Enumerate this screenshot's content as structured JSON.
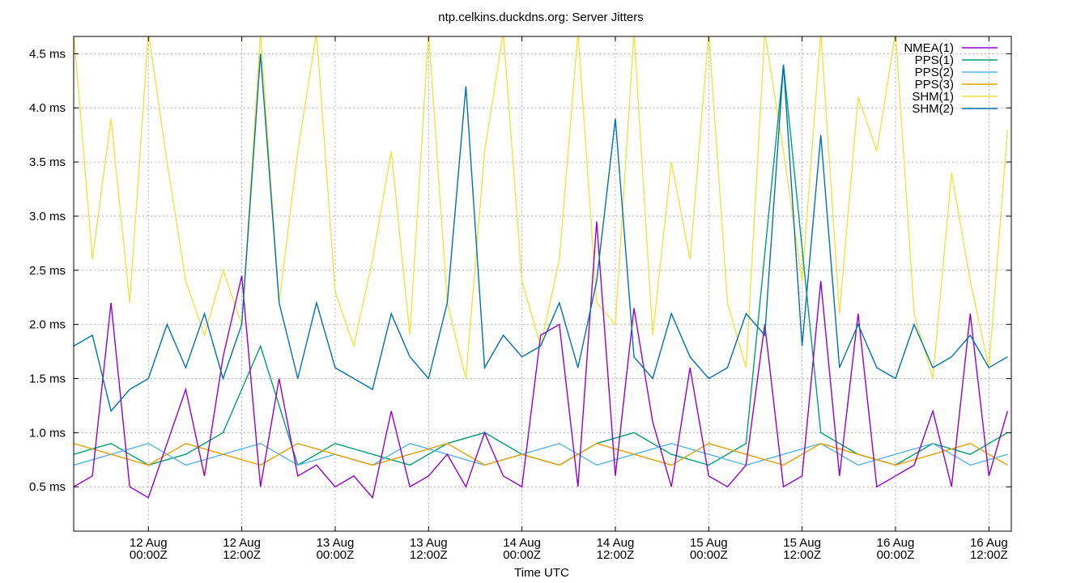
{
  "chart_data": {
    "type": "line",
    "title": "ntp.celkins.duckdns.org: Server Jitters",
    "xlabel": "Time UTC",
    "ylabel": "",
    "x_unit": "day",
    "xlim": [
      -0.4,
      4.62
    ],
    "ylim": [
      0.09,
      4.66
    ],
    "grid": true,
    "legend_position": "top-right",
    "x_ticks": [
      {
        "x": 0.0,
        "line1": "12 Aug",
        "line2": "00:00Z"
      },
      {
        "x": 0.5,
        "line1": "12 Aug",
        "line2": "12:00Z"
      },
      {
        "x": 1.0,
        "line1": "13 Aug",
        "line2": "00:00Z"
      },
      {
        "x": 1.5,
        "line1": "13 Aug",
        "line2": "12:00Z"
      },
      {
        "x": 2.0,
        "line1": "14 Aug",
        "line2": "00:00Z"
      },
      {
        "x": 2.5,
        "line1": "14 Aug",
        "line2": "12:00Z"
      },
      {
        "x": 3.0,
        "line1": "15 Aug",
        "line2": "00:00Z"
      },
      {
        "x": 3.5,
        "line1": "15 Aug",
        "line2": "12:00Z"
      },
      {
        "x": 4.0,
        "line1": "16 Aug",
        "line2": "00:00Z"
      },
      {
        "x": 4.5,
        "line1": "16 Aug",
        "line2": "12:00Z"
      }
    ],
    "y_ticks": [
      {
        "y": 0.5,
        "label": "0.5 ms"
      },
      {
        "y": 1.0,
        "label": "1.0 ms"
      },
      {
        "y": 1.5,
        "label": "1.5 ms"
      },
      {
        "y": 2.0,
        "label": "2.0 ms"
      },
      {
        "y": 2.5,
        "label": "2.5 ms"
      },
      {
        "y": 3.0,
        "label": "3.0 ms"
      },
      {
        "y": 3.5,
        "label": "3.5 ms"
      },
      {
        "y": 4.0,
        "label": "4.0 ms"
      },
      {
        "y": 4.5,
        "label": "4.5 ms"
      }
    ],
    "series": [
      {
        "name": "NMEA(1)",
        "color": "#9400d3",
        "x": [
          -0.4,
          -0.3,
          -0.2,
          -0.1,
          0.0,
          0.1,
          0.2,
          0.3,
          0.4,
          0.5,
          0.6,
          0.7,
          0.8,
          0.9,
          1.0,
          1.1,
          1.2,
          1.3,
          1.4,
          1.5,
          1.6,
          1.7,
          1.8,
          1.9,
          2.0,
          2.1,
          2.2,
          2.3,
          2.4,
          2.5,
          2.6,
          2.7,
          2.8,
          2.9,
          3.0,
          3.1,
          3.2,
          3.3,
          3.4,
          3.5,
          3.6,
          3.7,
          3.8,
          3.9,
          4.0,
          4.1,
          4.2,
          4.3,
          4.4,
          4.5,
          4.6
        ],
        "values": [
          0.5,
          0.6,
          2.2,
          0.5,
          0.4,
          0.9,
          1.4,
          0.6,
          1.7,
          2.45,
          0.5,
          1.5,
          0.6,
          0.7,
          0.5,
          0.6,
          0.4,
          1.2,
          0.5,
          0.6,
          0.8,
          0.5,
          1.0,
          0.6,
          0.5,
          1.9,
          2.0,
          0.5,
          2.95,
          0.6,
          2.15,
          1.1,
          0.5,
          1.6,
          0.6,
          0.5,
          0.7,
          2.0,
          0.5,
          0.6,
          2.4,
          0.6,
          2.1,
          0.5,
          0.6,
          0.7,
          1.2,
          0.5,
          2.1,
          0.6,
          1.2
        ]
      },
      {
        "name": "PPS(1)",
        "color": "#009e73",
        "x": [
          -0.4,
          -0.2,
          0.0,
          0.2,
          0.4,
          0.6,
          0.8,
          1.0,
          1.2,
          1.4,
          1.6,
          1.8,
          2.0,
          2.2,
          2.4,
          2.6,
          2.8,
          3.0,
          3.2,
          3.4,
          3.6,
          3.8,
          4.0,
          4.2,
          4.4,
          4.6
        ],
        "values": [
          0.8,
          0.9,
          0.7,
          0.8,
          1.0,
          1.8,
          0.7,
          0.9,
          0.8,
          0.7,
          0.9,
          1.0,
          0.8,
          0.7,
          0.9,
          1.0,
          0.8,
          0.7,
          0.9,
          4.4,
          1.0,
          0.8,
          0.7,
          0.9,
          0.8,
          1.0
        ]
      },
      {
        "name": "PPS(2)",
        "color": "#56b4e9",
        "x": [
          -0.4,
          -0.2,
          0.0,
          0.2,
          0.4,
          0.6,
          0.8,
          1.0,
          1.2,
          1.4,
          1.6,
          1.8,
          2.0,
          2.2,
          2.4,
          2.6,
          2.8,
          3.0,
          3.2,
          3.4,
          3.6,
          3.8,
          4.0,
          4.2,
          4.4,
          4.6
        ],
        "values": [
          0.7,
          0.8,
          0.9,
          0.7,
          0.8,
          0.9,
          0.7,
          0.8,
          0.7,
          0.9,
          0.8,
          0.7,
          0.8,
          0.9,
          0.7,
          0.8,
          0.9,
          0.8,
          0.7,
          0.8,
          0.9,
          0.7,
          0.8,
          0.9,
          0.7,
          0.8
        ]
      },
      {
        "name": "PPS(3)",
        "color": "#e69f00",
        "x": [
          -0.4,
          -0.2,
          0.0,
          0.2,
          0.4,
          0.6,
          0.8,
          1.0,
          1.2,
          1.4,
          1.6,
          1.8,
          2.0,
          2.2,
          2.4,
          2.6,
          2.8,
          3.0,
          3.2,
          3.4,
          3.6,
          3.8,
          4.0,
          4.2,
          4.4,
          4.6
        ],
        "values": [
          0.9,
          0.8,
          0.7,
          0.9,
          0.8,
          0.7,
          0.9,
          0.8,
          0.7,
          0.8,
          0.9,
          0.7,
          0.8,
          0.7,
          0.9,
          0.8,
          0.7,
          0.9,
          0.8,
          0.7,
          0.9,
          0.8,
          0.7,
          0.8,
          0.9,
          0.7
        ]
      },
      {
        "name": "SHM(1)",
        "color": "#f0e442",
        "x": [
          -0.4,
          -0.3,
          -0.2,
          -0.1,
          0.0,
          0.1,
          0.2,
          0.3,
          0.4,
          0.5,
          0.6,
          0.7,
          0.8,
          0.9,
          1.0,
          1.1,
          1.2,
          1.3,
          1.4,
          1.5,
          1.6,
          1.7,
          1.8,
          1.9,
          2.0,
          2.1,
          2.2,
          2.3,
          2.4,
          2.5,
          2.6,
          2.7,
          2.8,
          2.9,
          3.0,
          3.1,
          3.2,
          3.3,
          3.4,
          3.5,
          3.6,
          3.7,
          3.8,
          3.9,
          4.0,
          4.1,
          4.2,
          4.3,
          4.4,
          4.5,
          4.6
        ],
        "values": [
          4.7,
          2.6,
          3.9,
          2.2,
          4.7,
          3.5,
          2.4,
          1.9,
          2.5,
          2.0,
          4.7,
          2.2,
          3.6,
          4.7,
          2.3,
          1.8,
          2.6,
          3.6,
          1.9,
          4.7,
          2.2,
          1.5,
          3.6,
          4.7,
          2.4,
          1.8,
          2.6,
          4.7,
          2.2,
          2.0,
          4.7,
          1.9,
          3.5,
          2.6,
          4.7,
          2.2,
          1.6,
          4.7,
          3.6,
          2.4,
          4.7,
          2.1,
          4.1,
          3.6,
          4.7,
          2.1,
          1.5,
          3.4,
          2.4,
          1.6,
          3.8
        ]
      },
      {
        "name": "SHM(2)",
        "color": "#0072b2",
        "x": [
          -0.4,
          -0.3,
          -0.2,
          -0.1,
          0.0,
          0.1,
          0.2,
          0.3,
          0.4,
          0.5,
          0.6,
          0.7,
          0.8,
          0.9,
          1.0,
          1.1,
          1.2,
          1.3,
          1.4,
          1.5,
          1.6,
          1.7,
          1.8,
          1.9,
          2.0,
          2.1,
          2.2,
          2.3,
          2.4,
          2.5,
          2.6,
          2.7,
          2.8,
          2.9,
          3.0,
          3.1,
          3.2,
          3.3,
          3.4,
          3.5,
          3.6,
          3.7,
          3.8,
          3.9,
          4.0,
          4.1,
          4.2,
          4.3,
          4.4,
          4.5,
          4.6
        ],
        "values": [
          1.8,
          1.9,
          1.2,
          1.4,
          1.5,
          2.0,
          1.6,
          2.1,
          1.5,
          2.0,
          4.5,
          2.2,
          1.5,
          2.2,
          1.6,
          1.5,
          1.4,
          2.1,
          1.7,
          1.5,
          2.2,
          4.2,
          1.6,
          1.9,
          1.7,
          1.8,
          2.2,
          1.6,
          2.4,
          3.9,
          1.7,
          1.5,
          2.1,
          1.7,
          1.5,
          1.6,
          2.1,
          1.9,
          4.4,
          1.8,
          3.75,
          1.6,
          2.0,
          1.6,
          1.5,
          2.0,
          1.6,
          1.7,
          1.9,
          1.6,
          1.7
        ]
      }
    ]
  }
}
